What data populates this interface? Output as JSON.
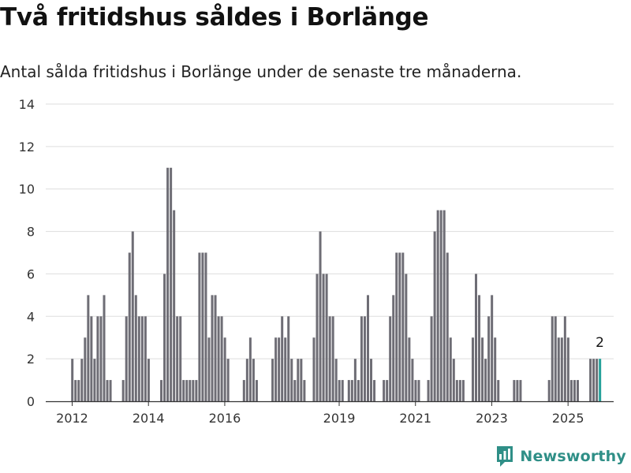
{
  "title": "Två fritidshus såldes i Borlänge",
  "subtitle": "Antal sålda fritidshus i Borlänge under de senaste tre månaderna.",
  "brand": "Newsworthy",
  "colors": {
    "bar": "#6e6d75",
    "highlight": "#24a19a",
    "grid": "#dddddd",
    "axis": "#333333",
    "brand": "#2f8f87"
  },
  "chart_data": {
    "type": "bar",
    "title": "Två fritidshus såldes i Borlänge",
    "subtitle": "Antal sålda fritidshus i Borlänge under de senaste tre månaderna.",
    "ylim": [
      0,
      14
    ],
    "yticks": [
      0,
      2,
      4,
      6,
      8,
      10,
      12,
      14
    ],
    "grid": true,
    "x_tick_labels": [
      {
        "label": "2012",
        "month_index": 0
      },
      {
        "label": "2014",
        "month_index": 24
      },
      {
        "label": "2016",
        "month_index": 48
      },
      {
        "label": "2019",
        "month_index": 84
      },
      {
        "label": "2021",
        "month_index": 108
      },
      {
        "label": "2023",
        "month_index": 132
      },
      {
        "label": "2025",
        "month_index": 156
      }
    ],
    "x_start": "2012-01",
    "values": [
      2,
      1,
      1,
      2,
      3,
      5,
      4,
      2,
      4,
      4,
      5,
      1,
      1,
      0,
      0,
      0,
      1,
      4,
      7,
      8,
      5,
      4,
      4,
      4,
      2,
      0,
      0,
      0,
      1,
      6,
      11,
      11,
      9,
      4,
      4,
      1,
      1,
      1,
      1,
      1,
      7,
      7,
      7,
      3,
      5,
      5,
      4,
      4,
      3,
      2,
      0,
      0,
      0,
      0,
      1,
      2,
      3,
      2,
      1,
      0,
      0,
      0,
      0,
      2,
      3,
      3,
      4,
      3,
      4,
      2,
      1,
      2,
      2,
      1,
      0,
      0,
      3,
      6,
      8,
      6,
      6,
      4,
      4,
      2,
      1,
      1,
      0,
      1,
      1,
      2,
      1,
      4,
      4,
      5,
      2,
      1,
      0,
      0,
      1,
      1,
      4,
      5,
      7,
      7,
      7,
      6,
      3,
      2,
      1,
      1,
      0,
      0,
      1,
      4,
      8,
      9,
      9,
      9,
      7,
      3,
      2,
      1,
      1,
      1,
      0,
      0,
      3,
      6,
      5,
      3,
      2,
      4,
      5,
      3,
      1,
      0,
      0,
      0,
      0,
      1,
      1,
      1,
      0,
      0,
      0,
      0,
      0,
      0,
      0,
      0,
      1,
      4,
      4,
      3,
      3,
      4,
      3,
      1,
      1,
      1,
      0,
      0,
      0,
      2,
      2,
      2,
      2
    ],
    "highlight_last": true,
    "highlight_label": "2"
  }
}
